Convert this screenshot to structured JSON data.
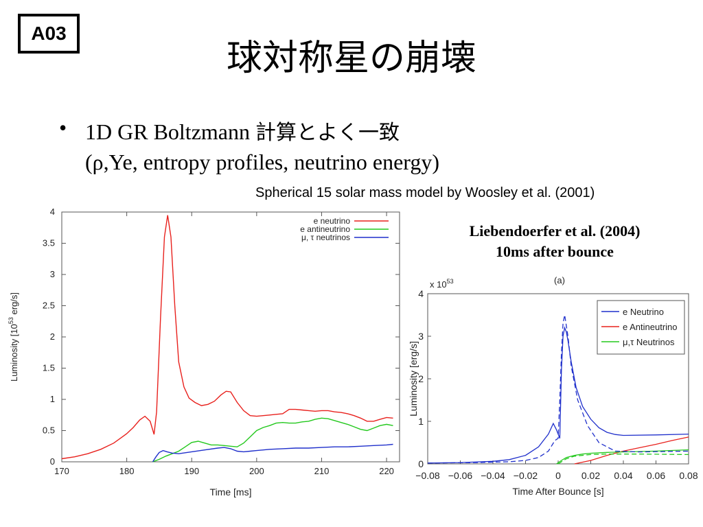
{
  "slide": {
    "badge": "A03",
    "title": "球対称星の崩壊",
    "bullet_dot": "•",
    "bullet_line1_latin": "1D GR Boltzmann ",
    "bullet_line1_jp": "計算とよく一致",
    "bullet_line2": "(ρ,Ye, entropy profiles, neutrino energy)",
    "caption": "Spherical 15 solar mass model by Woosley et al. (2001)",
    "reference_line1": "Liebendoerfer et al. (2004)",
    "reference_line2": "10ms after bounce"
  },
  "chart_data": [
    {
      "type": "line",
      "xlabel": "Time [ms]",
      "ylabel": "Luminosity [10^53 erg/s]",
      "ylabel_main": "Luminosity [10",
      "ylabel_exp": "53",
      "ylabel_tail": " erg/s]",
      "xlim": [
        170,
        222
      ],
      "ylim": [
        0,
        4
      ],
      "xticks": [
        "170",
        "180",
        "190",
        "200",
        "210",
        "220"
      ],
      "yticks": [
        "0",
        "0.5",
        "1",
        "1.5",
        "2",
        "2.5",
        "3",
        "3.5",
        "4"
      ],
      "legend_position": "top-right",
      "grid": false,
      "series": [
        {
          "name": "e neutrino",
          "color": "#e8201c",
          "x": [
            170,
            172,
            174,
            176,
            178,
            180,
            181,
            182,
            182.8,
            183.6,
            184.2,
            184.6,
            185.2,
            185.8,
            186.3,
            186.8,
            187.4,
            188,
            188.8,
            189.6,
            190.5,
            191.5,
            192.5,
            193.5,
            194.5,
            195.3,
            196,
            197,
            198,
            199,
            200,
            201,
            202,
            203,
            204,
            205,
            206,
            207,
            208,
            209,
            210,
            211,
            212,
            213,
            214,
            215,
            216,
            217,
            218,
            219,
            220,
            221
          ],
          "values": [
            0.05,
            0.08,
            0.13,
            0.2,
            0.3,
            0.45,
            0.55,
            0.67,
            0.73,
            0.65,
            0.44,
            0.8,
            2.3,
            3.6,
            3.95,
            3.6,
            2.5,
            1.6,
            1.2,
            1.02,
            0.95,
            0.9,
            0.92,
            0.97,
            1.07,
            1.13,
            1.12,
            0.95,
            0.82,
            0.74,
            0.73,
            0.74,
            0.75,
            0.76,
            0.77,
            0.84,
            0.84,
            0.83,
            0.82,
            0.81,
            0.82,
            0.82,
            0.8,
            0.79,
            0.77,
            0.74,
            0.7,
            0.65,
            0.65,
            0.68,
            0.71,
            0.7
          ]
        },
        {
          "name": "e antineutrino",
          "color": "#22c81c",
          "x": [
            184,
            185,
            186,
            187,
            188,
            189,
            190,
            191,
            192,
            193,
            194,
            195,
            196,
            197,
            198,
            199,
            200,
            201,
            202,
            203,
            204,
            205,
            206,
            207,
            208,
            209,
            210,
            211,
            212,
            213,
            214,
            215,
            216,
            217,
            218,
            219,
            220,
            221
          ],
          "values": [
            0,
            0.04,
            0.09,
            0.13,
            0.17,
            0.24,
            0.31,
            0.33,
            0.3,
            0.27,
            0.27,
            0.26,
            0.25,
            0.24,
            0.3,
            0.4,
            0.5,
            0.55,
            0.58,
            0.62,
            0.63,
            0.62,
            0.62,
            0.64,
            0.65,
            0.68,
            0.7,
            0.69,
            0.66,
            0.63,
            0.6,
            0.56,
            0.52,
            0.5,
            0.54,
            0.58,
            0.6,
            0.58
          ]
        },
        {
          "name": "μ, τ neutrinos",
          "color": "#1f2fcb",
          "x": [
            184,
            184.5,
            185,
            185.6,
            186.2,
            187,
            188,
            190,
            192,
            194,
            195,
            196,
            197,
            198,
            199,
            200,
            202,
            204,
            206,
            208,
            210,
            212,
            214,
            216,
            218,
            220,
            221
          ],
          "values": [
            0,
            0.08,
            0.15,
            0.18,
            0.16,
            0.14,
            0.13,
            0.16,
            0.19,
            0.22,
            0.23,
            0.21,
            0.17,
            0.16,
            0.17,
            0.18,
            0.2,
            0.21,
            0.22,
            0.22,
            0.23,
            0.24,
            0.24,
            0.25,
            0.26,
            0.27,
            0.28
          ]
        }
      ]
    },
    {
      "type": "line",
      "title": "(a)",
      "exponent_label": "x 10",
      "exponent_sup": "53",
      "xlabel": "Time After Bounce [s]",
      "ylabel": "Luminosity [erg/s]",
      "xlim": [
        -0.08,
        0.08
      ],
      "ylim": [
        0,
        4
      ],
      "xticks": [
        "−0.08",
        "−0.06",
        "−0.04",
        "−0.02",
        "0",
        "0.02",
        "0.04",
        "0.06",
        "0.08"
      ],
      "yticks": [
        "0",
        "1",
        "2",
        "3",
        "4"
      ],
      "legend_position": "top-right",
      "grid": false,
      "series": [
        {
          "name": "e Neutrino",
          "color": "#1f2fcb",
          "x": [
            -0.08,
            -0.06,
            -0.04,
            -0.03,
            -0.02,
            -0.012,
            -0.006,
            -0.003,
            -0.001,
            0.001,
            0.002,
            0.003,
            0.004,
            0.005,
            0.006,
            0.008,
            0.011,
            0.015,
            0.02,
            0.025,
            0.03,
            0.035,
            0.04,
            0.06,
            0.08
          ],
          "values": [
            0.02,
            0.03,
            0.06,
            0.1,
            0.2,
            0.4,
            0.7,
            0.95,
            0.8,
            0.6,
            2.2,
            3.0,
            3.2,
            3.1,
            2.9,
            2.4,
            1.8,
            1.35,
            1.05,
            0.85,
            0.74,
            0.69,
            0.67,
            0.68,
            0.7
          ]
        },
        {
          "name": "e Antineutrino",
          "color": "#e8201c",
          "x": [
            0.01,
            0.02,
            0.03,
            0.04,
            0.05,
            0.06,
            0.07,
            0.08
          ],
          "values": [
            0,
            0.08,
            0.2,
            0.3,
            0.38,
            0.46,
            0.55,
            0.63
          ]
        },
        {
          "name": "μ,τ Neutrinos",
          "color": "#22c81c",
          "x": [
            -0.001,
            0.002,
            0.005,
            0.01,
            0.015,
            0.02,
            0.03,
            0.04,
            0.06,
            0.08
          ],
          "values": [
            0,
            0.08,
            0.15,
            0.2,
            0.23,
            0.25,
            0.27,
            0.28,
            0.3,
            0.33
          ]
        },
        {
          "name": "",
          "color": "#1f2fcb",
          "dashed": true,
          "x": [
            -0.08,
            -0.05,
            -0.03,
            -0.02,
            -0.012,
            -0.006,
            -0.002,
            0.0,
            0.001,
            0.002,
            0.003,
            0.004,
            0.006,
            0.008,
            0.012,
            0.018,
            0.025,
            0.035,
            0.05,
            0.08
          ],
          "values": [
            0.02,
            0.03,
            0.05,
            0.08,
            0.15,
            0.3,
            0.55,
            0.6,
            1.5,
            2.6,
            3.3,
            3.5,
            3.0,
            2.3,
            1.5,
            0.9,
            0.5,
            0.3,
            0.28,
            0.3
          ]
        },
        {
          "name": "",
          "color": "#22c81c",
          "dashed": true,
          "x": [
            0.0,
            0.005,
            0.01,
            0.02,
            0.03,
            0.05,
            0.08
          ],
          "values": [
            0,
            0.12,
            0.18,
            0.22,
            0.23,
            0.23,
            0.22
          ]
        }
      ]
    }
  ]
}
